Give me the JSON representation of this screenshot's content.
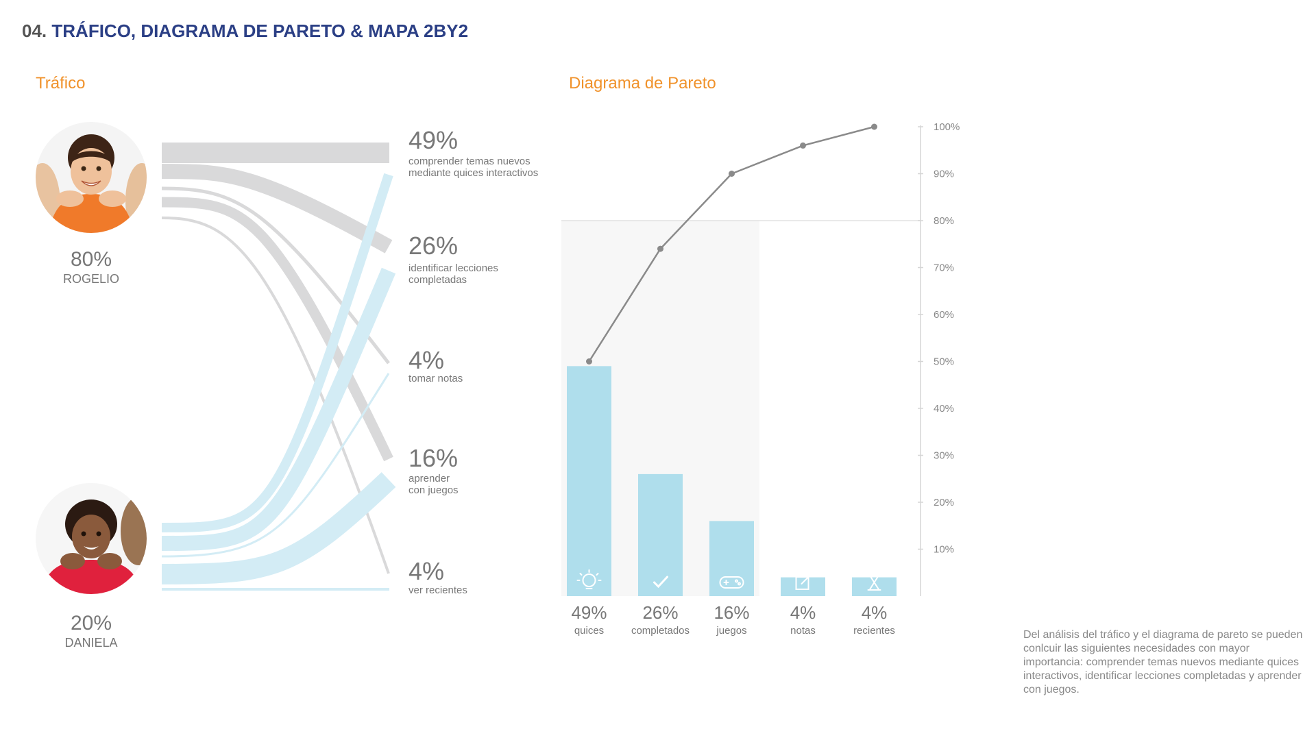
{
  "header": {
    "number": "04.",
    "title": "TRÁFICO, DIAGRAMA DE PARETO & MAPA 2BY2"
  },
  "traffic": {
    "title": "Tráfico",
    "people": [
      {
        "pct": "80%",
        "name": "ROGELIO",
        "color": "#d9d9da"
      },
      {
        "pct": "20%",
        "name": "DANIELA",
        "color": "#d3ecf5"
      }
    ],
    "destinations": [
      {
        "pct": "49%",
        "desc": "comprender temas nuevos mediante quices interactivos"
      },
      {
        "pct": "26%",
        "desc": "identificar lecciones completadas"
      },
      {
        "pct": "4%",
        "desc": "tomar notas"
      },
      {
        "pct": "16%",
        "desc": "aprender con juegos"
      },
      {
        "pct": "4%",
        "desc": "ver recientes"
      }
    ]
  },
  "pareto": {
    "title": "Diagrama de Pareto",
    "bar_color": "#afdeec",
    "line_color": "#8a8a8a",
    "icons": [
      "lightbulb-icon",
      "checkmark-icon",
      "gamepad-icon",
      "edit-note-icon",
      "hourglass-icon"
    ]
  },
  "chart_data": {
    "type": "bar",
    "categories": [
      "quices",
      "completados",
      "juegos",
      "notas",
      "recientes"
    ],
    "value_labels": [
      "49%",
      "26%",
      "16%",
      "4%",
      "4%"
    ],
    "values": [
      49,
      26,
      16,
      4,
      4
    ],
    "cumulative": [
      50,
      74,
      90,
      96,
      100
    ],
    "y_axis_ticks": [
      "10%",
      "20%",
      "30%",
      "40%",
      "50%",
      "60%",
      "70%",
      "80%",
      "90%",
      "100%"
    ],
    "ylim": [
      0,
      100
    ],
    "threshold": 80
  },
  "conclusion": "Del análisis del tráfico y el diagrama de pareto se pueden conlcuir las siguientes necesidades con mayor importancia: comprender temas nuevos mediante quices interactivos, identificar lecciones completadas y aprender con juegos."
}
